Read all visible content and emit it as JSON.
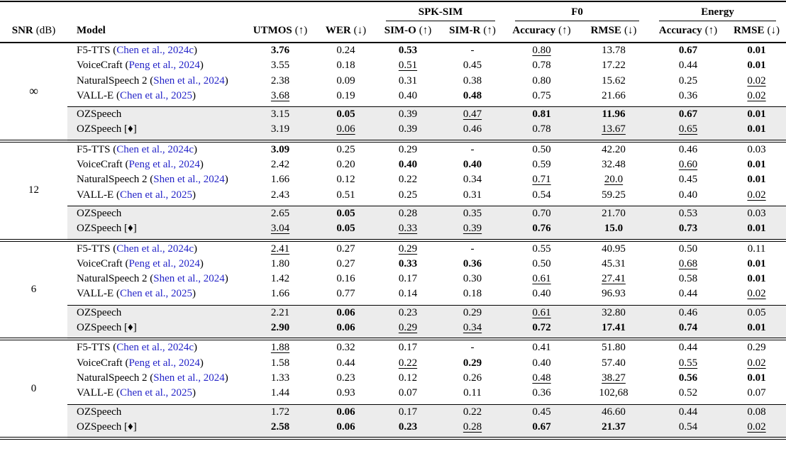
{
  "colors": {
    "citation_blue": "#2424c8",
    "highlight_gray": "#ececec",
    "rule_black": "#000000"
  },
  "header": {
    "snr": {
      "bold": "SNR",
      "normal": "(dB)"
    },
    "model": "Model",
    "groups": [
      {
        "label": "SPK-SIM"
      },
      {
        "label": "F0"
      },
      {
        "label": "Energy"
      }
    ],
    "metrics": [
      {
        "key": "utmos",
        "bold": "UTMOS",
        "normal": "(↑)"
      },
      {
        "key": "wer",
        "bold": "WER",
        "normal": "(↓)"
      },
      {
        "key": "simo",
        "bold": "SIM-O",
        "normal": "(↑)"
      },
      {
        "key": "simr",
        "bold": "SIM-R",
        "normal": "(↑)"
      },
      {
        "key": "f0acc",
        "bold": "Accuracy",
        "normal": "(↑)"
      },
      {
        "key": "f0rmse",
        "bold": "RMSE",
        "normal": "(↓)"
      },
      {
        "key": "eacc",
        "bold": "Accuracy",
        "normal": "(↑)"
      },
      {
        "key": "ermse",
        "bold": "RMSE",
        "normal": "(↓)"
      }
    ]
  },
  "style_legend": {
    "b": "bold",
    "u": "underline"
  },
  "groups": [
    {
      "snr_key": "inf",
      "snr": "∞",
      "rows": [
        {
          "model_pre": "F5-TTS (",
          "model_cite": "Chen et al., 2024c",
          "model_post": ")",
          "highlight": false,
          "cells": [
            "3.76|b",
            "0.24",
            "0.53|b",
            "-",
            "0.80|u",
            "13.78",
            "0.67|b",
            "0.01|b"
          ]
        },
        {
          "model_pre": "VoiceCraft (",
          "model_cite": "Peng et al., 2024",
          "model_post": ")",
          "highlight": false,
          "cells": [
            "3.55",
            "0.18",
            "0.51|u",
            "0.45",
            "0.78",
            "17.22",
            "0.44",
            "0.01|b"
          ]
        },
        {
          "model_pre": "NaturalSpeech 2 (",
          "model_cite": "Shen et al., 2024",
          "model_post": ")",
          "highlight": false,
          "cells": [
            "2.38",
            "0.09",
            "0.31",
            "0.38",
            "0.80",
            "15.62",
            "0.25",
            "0.02|u"
          ]
        },
        {
          "model_pre": "VALL-E (",
          "model_cite": "Chen et al., 2025",
          "model_post": ")",
          "highlight": false,
          "cells": [
            "3.68|u",
            "0.19",
            "0.40",
            "0.48|b",
            "0.75",
            "21.66",
            "0.36",
            "0.02|u"
          ]
        },
        {
          "model_pre": "OZSpeech",
          "model_cite": "",
          "model_post": "",
          "highlight": true,
          "cells": [
            "3.15",
            "0.05|b",
            "0.39",
            "0.47|u",
            "0.81|b",
            "11.96|b",
            "0.67|b",
            "0.01|b"
          ]
        },
        {
          "model_pre": "OZSpeech [♦]",
          "model_cite": "",
          "model_post": "",
          "highlight": true,
          "cells": [
            "3.19",
            "0.06|u",
            "0.39",
            "0.46",
            "0.78",
            "13.67|u",
            "0.65|u",
            "0.01|b"
          ]
        }
      ]
    },
    {
      "snr_key": "12",
      "snr": "12",
      "rows": [
        {
          "model_pre": "F5-TTS (",
          "model_cite": "Chen et al., 2024c",
          "model_post": ")",
          "highlight": false,
          "cells": [
            "3.09|b",
            "0.25",
            "0.29",
            "-",
            "0.50",
            "42.20",
            "0.46",
            "0.03"
          ]
        },
        {
          "model_pre": "VoiceCraft (",
          "model_cite": "Peng et al., 2024",
          "model_post": ")",
          "highlight": false,
          "cells": [
            "2.42",
            "0.20",
            "0.40|b",
            "0.40|b",
            "0.59",
            "32.48",
            "0.60|u",
            "0.01|b"
          ]
        },
        {
          "model_pre": "NaturalSpeech 2 (",
          "model_cite": "Shen et al., 2024",
          "model_post": ")",
          "highlight": false,
          "cells": [
            "1.66",
            "0.12",
            "0.22",
            "0.34",
            "0.71|u",
            "20.0|u",
            "0.45",
            "0.01|b"
          ]
        },
        {
          "model_pre": "VALL-E (",
          "model_cite": "Chen et al., 2025",
          "model_post": ")",
          "highlight": false,
          "cells": [
            "2.43",
            "0.51",
            "0.25",
            "0.31",
            "0.54",
            "59.25",
            "0.40",
            "0.02|u"
          ]
        },
        {
          "model_pre": "OZSpeech",
          "model_cite": "",
          "model_post": "",
          "highlight": true,
          "cells": [
            "2.65",
            "0.05|b",
            "0.28",
            "0.35",
            "0.70",
            "21.70",
            "0.53",
            "0.03"
          ]
        },
        {
          "model_pre": "OZSpeech [♦]",
          "model_cite": "",
          "model_post": "",
          "highlight": true,
          "cells": [
            "3.04|u",
            "0.05|b",
            "0.33|u",
            "0.39|u",
            "0.76|b",
            "15.0|b",
            "0.73|b",
            "0.01|b"
          ]
        }
      ]
    },
    {
      "snr_key": "6",
      "snr": "6",
      "rows": [
        {
          "model_pre": "F5-TTS (",
          "model_cite": "Chen et al., 2024c",
          "model_post": ")",
          "highlight": false,
          "cells": [
            "2.41|u",
            "0.27",
            "0.29|u",
            "-",
            "0.55",
            "40.95",
            "0.50",
            "0.11"
          ]
        },
        {
          "model_pre": "VoiceCraft (",
          "model_cite": "Peng et al., 2024",
          "model_post": ")",
          "highlight": false,
          "cells": [
            "1.80",
            "0.27",
            "0.33|b",
            "0.36|b",
            "0.50",
            "45.31",
            "0.68|u",
            "0.01|b"
          ]
        },
        {
          "model_pre": "NaturalSpeech 2 (",
          "model_cite": "Shen et al., 2024",
          "model_post": ")",
          "highlight": false,
          "cells": [
            "1.42",
            "0.16",
            "0.17",
            "0.30",
            "0.61|u",
            "27.41|u",
            "0.58",
            "0.01|b"
          ]
        },
        {
          "model_pre": "VALL-E (",
          "model_cite": "Chen et al., 2025",
          "model_post": ")",
          "highlight": false,
          "cells": [
            "1.66",
            "0.77",
            "0.14",
            "0.18",
            "0.40",
            "96.93",
            "0.44",
            "0.02|u"
          ]
        },
        {
          "model_pre": "OZSpeech",
          "model_cite": "",
          "model_post": "",
          "highlight": true,
          "cells": [
            "2.21",
            "0.06|b",
            "0.23",
            "0.29",
            "0.61|u",
            "32.80",
            "0.46",
            "0.05"
          ]
        },
        {
          "model_pre": "OZSpeech [♦]",
          "model_cite": "",
          "model_post": "",
          "highlight": true,
          "cells": [
            "2.90|b",
            "0.06|b",
            "0.29|u",
            "0.34|u",
            "0.72|b",
            "17.41|b",
            "0.74|b",
            "0.01|b"
          ]
        }
      ]
    },
    {
      "snr_key": "0",
      "snr": "0",
      "rows": [
        {
          "model_pre": "F5-TTS (",
          "model_cite": "Chen et al., 2024c",
          "model_post": ")",
          "highlight": false,
          "cells": [
            "1.88|u",
            "0.32",
            "0.17",
            "-",
            "0.41",
            "51.80",
            "0.44",
            "0.29"
          ]
        },
        {
          "model_pre": "VoiceCraft (",
          "model_cite": "Peng et al., 2024",
          "model_post": ")",
          "highlight": false,
          "cells": [
            "1.58",
            "0.44",
            "0.22|u",
            "0.29|b",
            "0.40",
            "57.40",
            "0.55|u",
            "0.02|u"
          ]
        },
        {
          "model_pre": "NaturalSpeech 2 (",
          "model_cite": "Shen et al., 2024",
          "model_post": ")",
          "highlight": false,
          "cells": [
            "1.33",
            "0.23",
            "0.12",
            "0.26",
            "0.48|u",
            "38.27|u",
            "0.56|b",
            "0.01|b"
          ]
        },
        {
          "model_pre": "VALL-E (",
          "model_cite": "Chen et al., 2025",
          "model_post": ")",
          "highlight": false,
          "cells": [
            "1.44",
            "0.93",
            "0.07",
            "0.11",
            "0.36",
            "102,68",
            "0.52",
            "0.07"
          ]
        },
        {
          "model_pre": "OZSpeech",
          "model_cite": "",
          "model_post": "",
          "highlight": true,
          "cells": [
            "1.72",
            "0.06|b",
            "0.17",
            "0.22",
            "0.45",
            "46.60",
            "0.44",
            "0.08"
          ]
        },
        {
          "model_pre": "OZSpeech [♦]",
          "model_cite": "",
          "model_post": "",
          "highlight": true,
          "cells": [
            "2.58|b",
            "0.06|b",
            "0.23|b",
            "0.28|u",
            "0.67|b",
            "21.37|b",
            "0.54",
            "0.02|u"
          ]
        }
      ]
    }
  ]
}
